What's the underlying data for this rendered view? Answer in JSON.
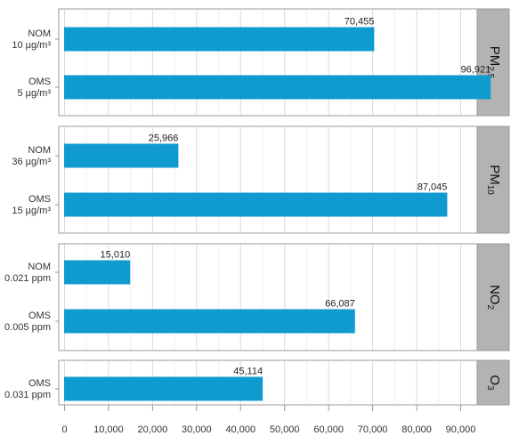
{
  "chart_data": {
    "type": "bar",
    "orientation": "horizontal",
    "title": "",
    "xlabel": "",
    "ylabel": "",
    "xlim": [
      0,
      97000
    ],
    "x_ticks": [
      "0",
      "10,000",
      "20,000",
      "30,000",
      "40,000",
      "50,000",
      "60,000",
      "70,000",
      "80,000",
      "90,000"
    ],
    "x_tick_values": [
      0,
      10000,
      20000,
      30000,
      40000,
      50000,
      60000,
      70000,
      80000,
      90000
    ],
    "grid": true,
    "bar_color": "#0f9bd0",
    "strip_color": "#b3b3b3",
    "panels": [
      {
        "pollutant": {
          "main": "PM",
          "sub": "2.5"
        },
        "bars": [
          {
            "label_line1": "NOM",
            "label_line2": "10 µg/m³",
            "value": 70455,
            "value_label": "70,455"
          },
          {
            "label_line1": "OMS",
            "label_line2": "5 µg/m³",
            "value": 96921,
            "value_label": "96,921"
          }
        ]
      },
      {
        "pollutant": {
          "main": "PM",
          "sub": "10"
        },
        "bars": [
          {
            "label_line1": "NOM",
            "label_line2": "36 µg/m³",
            "value": 25966,
            "value_label": "25,966"
          },
          {
            "label_line1": "OMS",
            "label_line2": "15 µg/m³",
            "value": 87045,
            "value_label": "87,045"
          }
        ]
      },
      {
        "pollutant": {
          "main": "NO",
          "sub": "2"
        },
        "bars": [
          {
            "label_line1": "NOM",
            "label_line2": "0.021 ppm",
            "value": 15010,
            "value_label": "15,010"
          },
          {
            "label_line1": "OMS",
            "label_line2": "0.005 ppm",
            "value": 66087,
            "value_label": "66,087"
          }
        ]
      },
      {
        "pollutant": {
          "main": "O",
          "sub": "3"
        },
        "bars": [
          {
            "label_line1": "OMS",
            "label_line2": "0.031 ppm",
            "value": 45114,
            "value_label": "45,114"
          }
        ]
      }
    ]
  }
}
